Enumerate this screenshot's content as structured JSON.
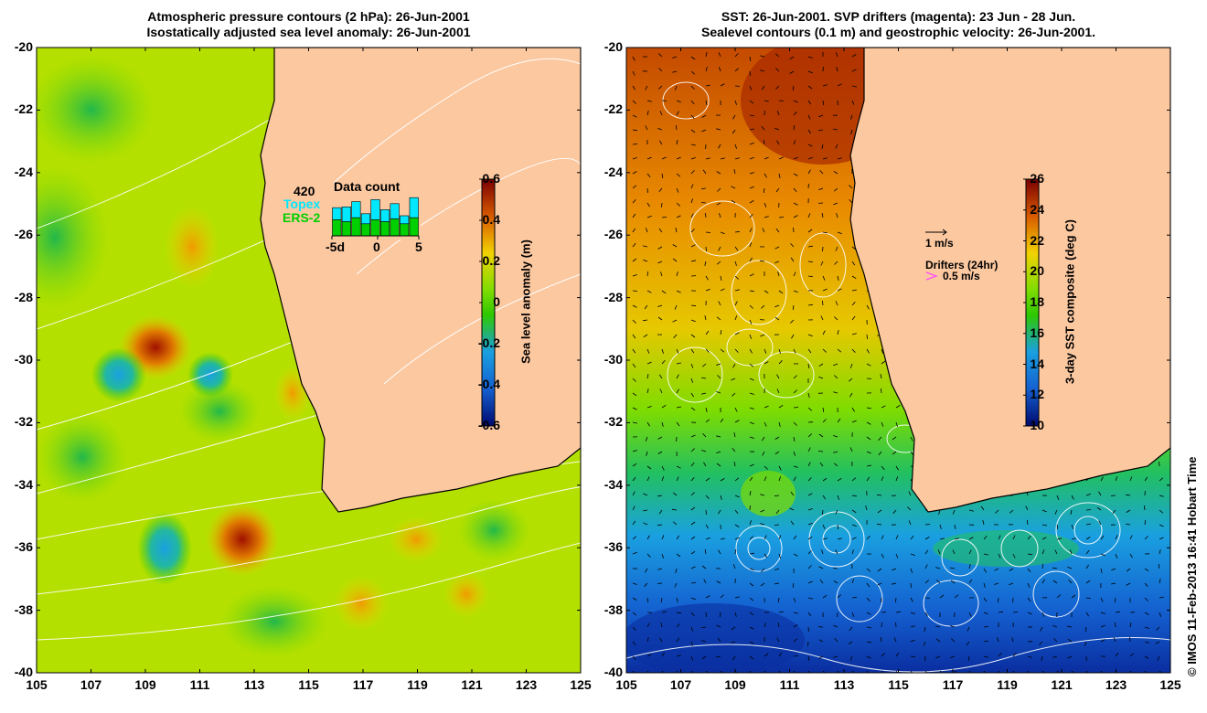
{
  "left_panel": {
    "title_line1": "Atmospheric pressure contours (2 hPa): 26-Jun-2001",
    "title_line2": "Isostatically adjusted sea level anomaly: 26-Jun-2001",
    "x_ticks": [
      "105",
      "107",
      "109",
      "111",
      "113",
      "115",
      "117",
      "119",
      "121",
      "123",
      "125"
    ],
    "y_ticks": [
      "-20",
      "-22",
      "-24",
      "-26",
      "-28",
      "-30",
      "-32",
      "-34",
      "-36",
      "-38",
      "-40"
    ],
    "colorbar": {
      "label": "Sea level anomaly (m)",
      "ticks": [
        "0.6",
        "0.4",
        "0.2",
        "0",
        "-0.2",
        "-0.4",
        "-0.6"
      ],
      "colors": [
        "#7a0000",
        "#b41e00",
        "#d85a00",
        "#f09a00",
        "#f2d200",
        "#c8e600",
        "#7edc00",
        "#2ec800",
        "#1fbf4a",
        "#22b8a0",
        "#1aa0e0",
        "#1460d0",
        "#0a2ea0",
        "#000a6e"
      ]
    },
    "inset": {
      "count": "420",
      "topex_label": "Topex",
      "ers_label": "ERS-2",
      "title": "Data count",
      "ticks": [
        "-5d",
        "0",
        "5"
      ],
      "topex_values": [
        0.7,
        0.72,
        0.85,
        0.55,
        0.9,
        0.65,
        0.8,
        0.5,
        0.95
      ],
      "ers_values": [
        0.4,
        0.35,
        0.45,
        0.3,
        0.4,
        0.35,
        0.42,
        0.3,
        0.45
      ],
      "topex_color": "#00e8ff",
      "ers_color": "#00d000"
    }
  },
  "right_panel": {
    "title_line1": "SST: 26-Jun-2001. SVP drifters (magenta): 23 Jun - 28 Jun.",
    "title_line2": "Sealevel contours (0.1 m) and geostrophic velocity: 26-Jun-2001.",
    "x_ticks": [
      "105",
      "107",
      "109",
      "111",
      "113",
      "115",
      "117",
      "119",
      "121",
      "123",
      "125"
    ],
    "y_ticks": [
      "-20",
      "-22",
      "-24",
      "-26",
      "-28",
      "-30",
      "-32",
      "-34",
      "-36",
      "-38",
      "-40"
    ],
    "colorbar": {
      "label": "3-day SST composite (deg C)",
      "ticks": [
        "26",
        "24",
        "22",
        "20",
        "18",
        "16",
        "14",
        "12",
        "10"
      ],
      "colors": [
        "#7a0000",
        "#b41e00",
        "#d85a00",
        "#f09a00",
        "#f2d200",
        "#c8e600",
        "#7edc00",
        "#2ec800",
        "#1fbf4a",
        "#22b8a0",
        "#1aa0e0",
        "#1460d0",
        "#0a2ea0",
        "#000a6e"
      ]
    },
    "legend": {
      "scale_label": "1 m/s",
      "drifters_label": "Drifters (24hr)",
      "drifter_speed": "0.5 m/s",
      "drifter_color": "#ff44ff"
    }
  },
  "colors": {
    "land": "#fcc8a0",
    "coast": "#000000"
  },
  "credit": "© IMOS 11-Feb-2013 16:41 Hobart Time"
}
